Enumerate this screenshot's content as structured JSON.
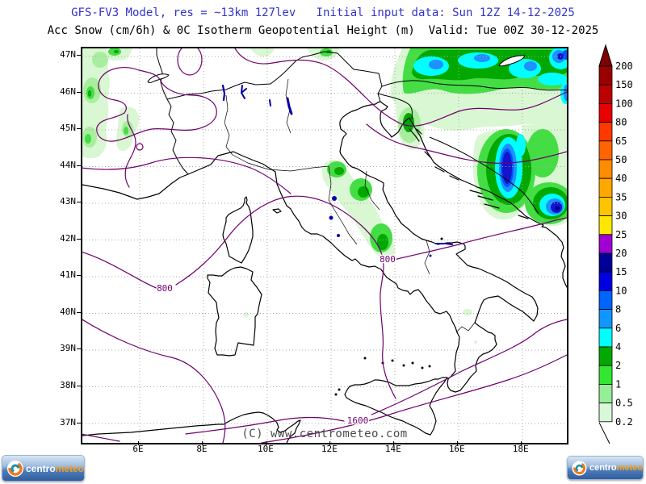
{
  "header": {
    "title_line1": "GFS-FV3 Model, res = ~13km 127lev   Initial input data: Sun 12Z 14-12-2025",
    "title_line2": "Acc Snow (cm/6h) & 0C Isotherm Geopotential Height (m)  Valid: Tue 00Z 30-12-2025",
    "title_color": "#3333cc"
  },
  "map": {
    "lat_labels": [
      "47N",
      "46N",
      "45N",
      "44N",
      "43N",
      "42N",
      "41N",
      "40N",
      "39N",
      "38N",
      "37N"
    ],
    "lon_labels": [
      "6E",
      "8E",
      "10E",
      "12E",
      "14E",
      "16E",
      "18E"
    ],
    "contour_labels": {
      "isoline_800_west": "800",
      "isoline_800_central": "800",
      "isoline_1600_south": "1600"
    },
    "copyright": "(C) www.centrometeo.com",
    "contour_color": "#70006e",
    "coast_color": "#000000",
    "lake_color": "#0000aa",
    "grid_color": "#aaaaaa"
  },
  "legend": {
    "values": [
      "200",
      "150",
      "100",
      "80",
      "65",
      "50",
      "40",
      "35",
      "30",
      "25",
      "20",
      "15",
      "10",
      "8",
      "6",
      "4",
      "2",
      "1",
      "0.5",
      "0.2"
    ],
    "segment_colors": [
      "#9b0000",
      "#bd0000",
      "#e80000",
      "#ff3800",
      "#ff6400",
      "#ff8c00",
      "#ffa800",
      "#ffc400",
      "#ffe800",
      "#a000d2",
      "#000096",
      "#0000e0",
      "#0064ff",
      "#0f96ff",
      "#00ffff",
      "#00aa00",
      "#32e632",
      "#96ef96",
      "#d8f8d8"
    ],
    "arrow_color": "#7e0000"
  },
  "snow_palette": {
    "pale_green": "#d9f7d2",
    "light_green": "#a9ee9f",
    "green": "#44dd44",
    "dark_green": "#00a800",
    "cyan": "#00ffff",
    "dodger": "#1e90ff",
    "blue": "#0055ff",
    "dark_blue": "#1414cc",
    "navy": "#000099"
  },
  "footer": {
    "logo_text_primary": "centro",
    "logo_text_secondary": "meteo"
  }
}
